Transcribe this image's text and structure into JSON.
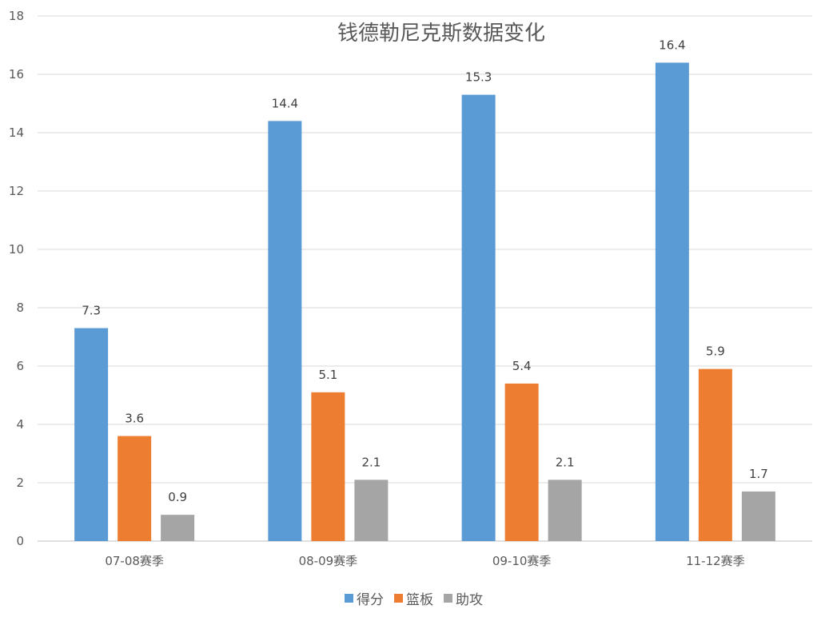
{
  "chart_data": {
    "type": "bar",
    "title": "钱德勒尼克斯数据变化",
    "xlabel": "",
    "ylabel": "",
    "ylim": [
      0,
      18
    ],
    "yticks": [
      0,
      2,
      4,
      6,
      8,
      10,
      12,
      14,
      16,
      18
    ],
    "grid": true,
    "legend_position": "bottom",
    "categories": [
      "07-08赛季",
      "08-09赛季",
      "09-10赛季",
      "11-12赛季"
    ],
    "series": [
      {
        "name": "得分",
        "color": "#5B9BD5",
        "values": [
          7.3,
          14.4,
          15.3,
          16.4
        ]
      },
      {
        "name": "篮板",
        "color": "#ED7D31",
        "values": [
          3.6,
          5.1,
          5.4,
          5.9
        ]
      },
      {
        "name": "助攻",
        "color": "#A5A5A5",
        "values": [
          0.9,
          2.1,
          2.1,
          1.7
        ]
      }
    ]
  }
}
